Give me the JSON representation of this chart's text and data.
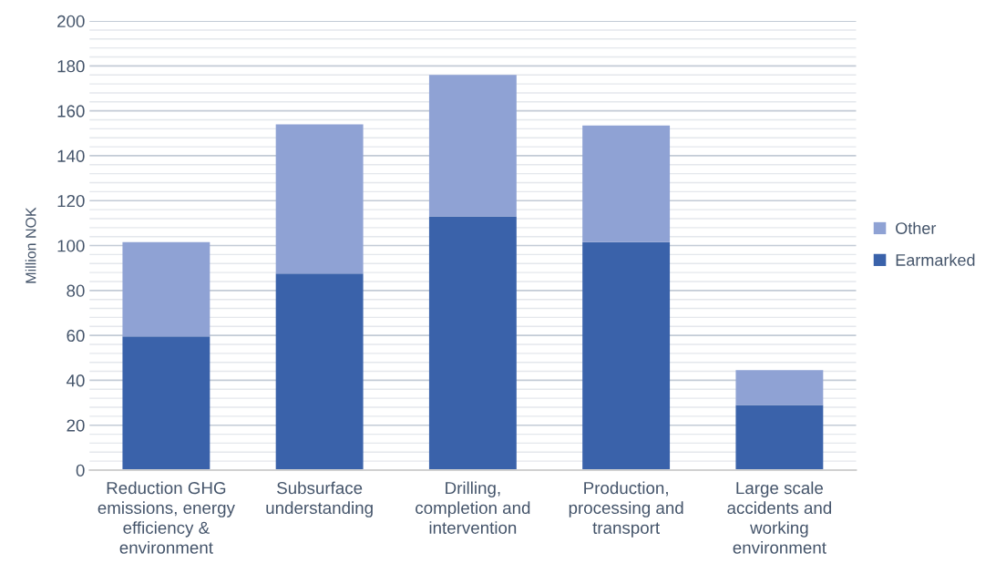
{
  "chart_data": {
    "type": "bar",
    "stacked": true,
    "ylabel": "Million NOK",
    "categories": [
      "Reduction GHG\nemissions, energy\nefficiency &\nenvironment",
      "Subsurface\nunderstanding",
      "Drilling,\ncompletion and\nintervention",
      "Production,\nprocessing and\ntransport",
      "Large scale\naccidents and\nworking\nenvironment"
    ],
    "series": [
      {
        "name": "Earmarked",
        "color": "#3a62aa",
        "values": [
          59.5,
          87.5,
          113,
          101.5,
          29
        ]
      },
      {
        "name": "Other",
        "color": "#8fa2d4",
        "values": [
          42,
          66.5,
          63,
          52,
          15.5
        ]
      }
    ],
    "ylim": [
      0,
      200
    ],
    "yticks": [
      0,
      {
        "value": 4,
        "label": null
      },
      {
        "value": 8,
        "label": null
      },
      {
        "value": 12,
        "label": null
      },
      {
        "value": 16,
        "label": null
      },
      20,
      {
        "value": 24,
        "label": null
      },
      {
        "value": 28,
        "label": null
      },
      {
        "value": 32,
        "label": null
      },
      {
        "value": 36,
        "label": null
      },
      40,
      {
        "value": 44,
        "label": null
      },
      {
        "value": 48,
        "label": null
      },
      {
        "value": 52,
        "label": null
      },
      {
        "value": 56,
        "label": null
      },
      60,
      {
        "value": 64,
        "label": null
      },
      {
        "value": 68,
        "label": null
      },
      {
        "value": 72,
        "label": null
      },
      {
        "value": 76,
        "label": null
      },
      80,
      {
        "value": 84,
        "label": null
      },
      {
        "value": 88,
        "label": null
      },
      {
        "value": 92,
        "label": null
      },
      {
        "value": 96,
        "label": null
      },
      100,
      {
        "value": 104,
        "label": null
      },
      {
        "value": 108,
        "label": null
      },
      {
        "value": 112,
        "label": null
      },
      {
        "value": 116,
        "label": null
      },
      120,
      {
        "value": 124,
        "label": null
      },
      {
        "value": 128,
        "label": null
      },
      {
        "value": 132,
        "label": null
      },
      {
        "value": 136,
        "label": null
      },
      140,
      {
        "value": 144,
        "label": null
      },
      {
        "value": 148,
        "label": null
      },
      {
        "value": 152,
        "label": null
      },
      {
        "value": 156,
        "label": null
      },
      160,
      {
        "value": 164,
        "label": null
      },
      {
        "value": 168,
        "label": null
      },
      {
        "value": 172,
        "label": null
      },
      {
        "value": 176,
        "label": null
      },
      180,
      {
        "value": 184,
        "label": null
      },
      {
        "value": 188,
        "label": null
      },
      {
        "value": 192,
        "label": null
      },
      {
        "value": 196,
        "label": null
      },
      200
    ],
    "grid": "y",
    "legend": "right"
  }
}
